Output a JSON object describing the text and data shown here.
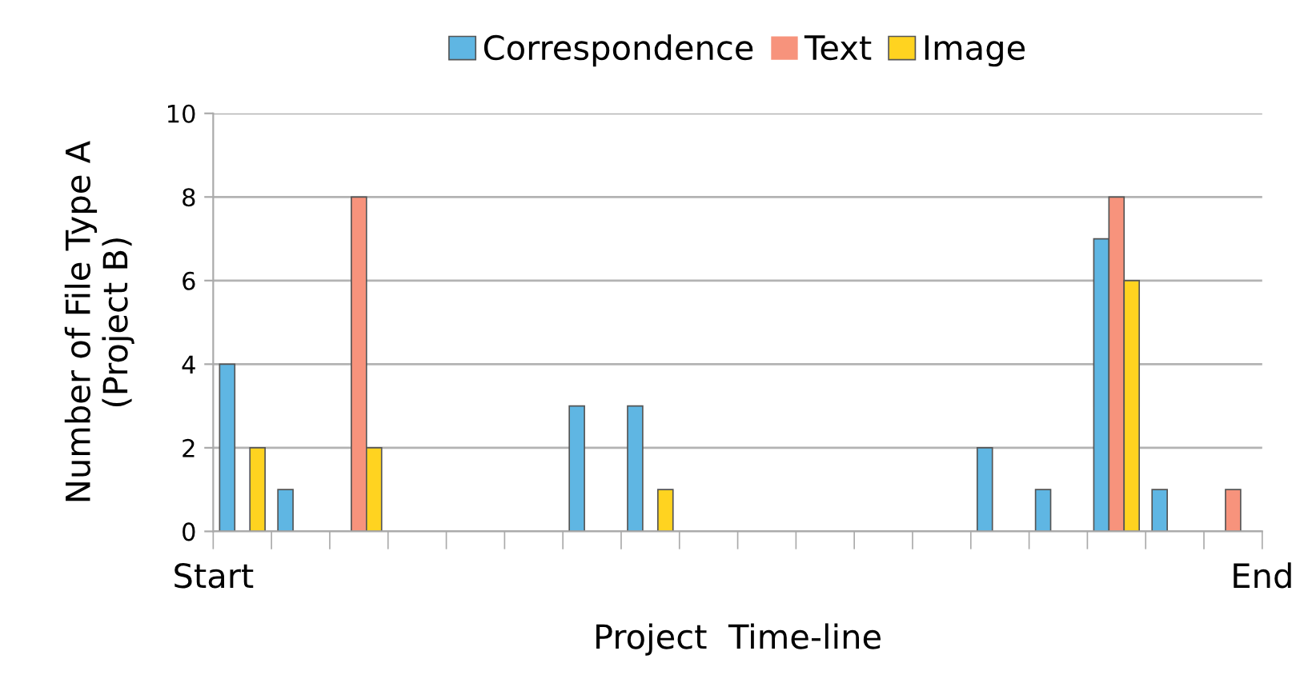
{
  "chart_data": {
    "type": "bar",
    "xlabel": "Project  Time-line",
    "ylabel": "Number of File Type A\n(Project B)",
    "categories": [
      null,
      null,
      null,
      null,
      null,
      null,
      null,
      null,
      null,
      null,
      null,
      null,
      null,
      null,
      null,
      null,
      null,
      null
    ],
    "series": [
      {
        "name": "Correspondence",
        "color": "#5fb6e3",
        "values": [
          4,
          1,
          0,
          0,
          0,
          0,
          3,
          3,
          0,
          0,
          0,
          0,
          0,
          2,
          1,
          7,
          1,
          0
        ]
      },
      {
        "name": "Text",
        "color": "#f7937c",
        "values": [
          0,
          0,
          8,
          0,
          0,
          0,
          0,
          0,
          0,
          0,
          0,
          0,
          0,
          0,
          0,
          8,
          0,
          1
        ]
      },
      {
        "name": "Image",
        "color": "#ffd320",
        "values": [
          2,
          0,
          2,
          0,
          0,
          0,
          0,
          1,
          0,
          0,
          0,
          0,
          0,
          0,
          0,
          6,
          0,
          0
        ]
      }
    ],
    "annotations": [
      "Start",
      "End"
    ],
    "ylim": [
      0,
      10
    ],
    "yticks": [
      0,
      2,
      4,
      6,
      8,
      10
    ],
    "grid": "y",
    "legend": "top"
  }
}
